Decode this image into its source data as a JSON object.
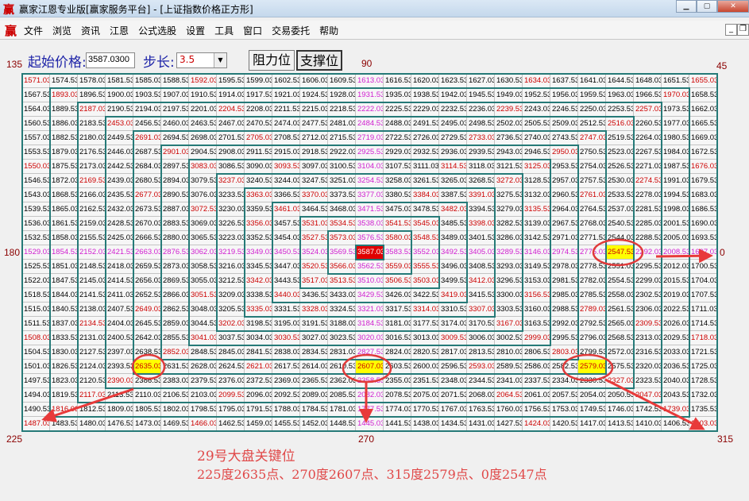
{
  "window": {
    "icon": "赢",
    "title": "赢家江恩专业版[赢家服务平台] - [上证指数价格正方形]",
    "buttons": [
      "minimize-icon",
      "maximize-icon",
      "close-icon"
    ]
  },
  "menu": {
    "icon": "赢",
    "items": [
      "文件",
      "浏览",
      "资讯",
      "江恩",
      "公式选股",
      "设置",
      "工具",
      "窗口",
      "交易委托",
      "帮助"
    ]
  },
  "controls": {
    "start_label": "起始价格:",
    "start_price": "3587.0300",
    "step_label": "步长:",
    "step": "3.5",
    "resistance_button": "阻力位",
    "support_button": "支撑位"
  },
  "angles": {
    "a135": "135",
    "a90": "90",
    "a45": "45",
    "a180": "180",
    "a0": "0",
    "a225": "225",
    "a270": "270",
    "a315": "315"
  },
  "grid": {
    "size": 25,
    "order": "counterclockwise spiral from center, values decreasing by step",
    "highlighted": [
      "2635.03",
      "2607.03",
      "2579.03",
      "2547.53"
    ],
    "colors": {
      "axis": "#d020d0",
      "diagonal": "#cc0000",
      "center_bg": "#e00000",
      "highlight_bg": "#ffff00",
      "ring_border": "#267a78"
    }
  },
  "annotation": {
    "line1": "29号大盘关键位",
    "line2": "225度2635点、270度2607点、315度2579点、0度2547点",
    "color": "#e04848"
  }
}
